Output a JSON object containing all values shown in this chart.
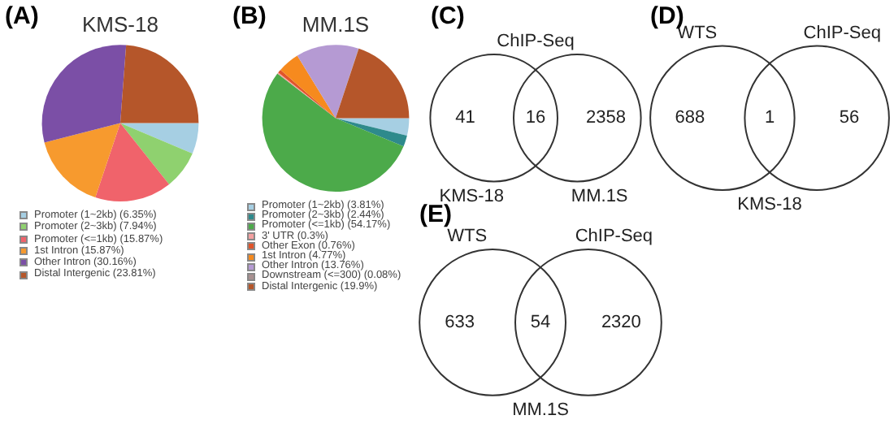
{
  "chart_data": [
    {
      "type": "pie",
      "title": "KMS-18",
      "annotations": [
        "(A)"
      ],
      "legend": "bottom",
      "categories": [
        "Promoter (1~2kb) (6.35%)",
        "Promoter (2~3kb) (7.94%)",
        "Promoter (<=1kb) (15.87%)",
        "1st Intron (15.87%)",
        "Other Intron (30.16%)",
        "Distal Intergenic (23.81%)"
      ],
      "values": [
        6.35,
        7.94,
        15.87,
        15.87,
        30.16,
        23.81
      ],
      "colors": [
        "#a6cfe3",
        "#8fd16f",
        "#f0636b",
        "#f79a2e",
        "#7b4fa6",
        "#b5562a"
      ]
    },
    {
      "type": "pie",
      "title": "MM.1S",
      "annotations": [
        "(B)"
      ],
      "legend": "bottom",
      "categories": [
        "Promoter (1~2kb) (3.81%)",
        "Promoter (2~3kb) (2.44%)",
        "Promoter (<=1kb) (54.17%)",
        "3' UTR (0.3%)",
        "Other Exon (0.76%)",
        "1st Intron (4.77%)",
        "Other Intron (13.76%)",
        "Downstream (<=300) (0.08%)",
        "Distal Intergenic (19.9%)"
      ],
      "values": [
        3.81,
        2.44,
        54.17,
        0.3,
        0.76,
        4.77,
        13.76,
        0.08,
        19.9
      ],
      "colors": [
        "#a6cfe3",
        "#2e8a8c",
        "#4caa4a",
        "#f3a0a0",
        "#e0542a",
        "#f68a1e",
        "#b59ad3",
        "#a89090",
        "#b5562a"
      ]
    },
    {
      "type": "other",
      "title": "ChIP-Seq",
      "annotations": [
        "(C)"
      ],
      "categories": [
        "KMS-18",
        null,
        "MM.1S"
      ],
      "values": [
        41,
        16,
        2358
      ],
      "data_labels": true
    },
    {
      "type": "other",
      "xlabel": "KMS-18",
      "annotations": [
        "(D)"
      ],
      "categories": [
        "WTS",
        null,
        "ChIP-Seq"
      ],
      "values": [
        688,
        1,
        56
      ],
      "data_labels": true
    },
    {
      "type": "other",
      "xlabel": "MM.1S",
      "annotations": [
        "(E)"
      ],
      "categories": [
        "WTS",
        null,
        "ChIP-Seq"
      ],
      "values": [
        633,
        54,
        2320
      ],
      "data_labels": true
    }
  ]
}
